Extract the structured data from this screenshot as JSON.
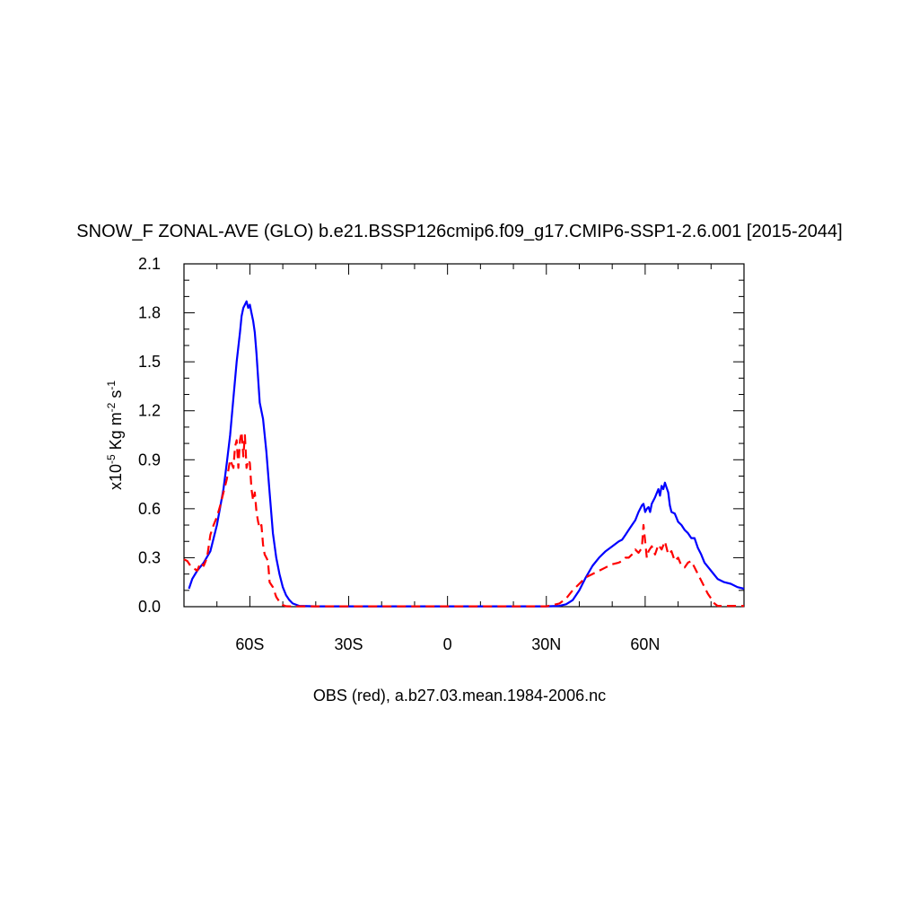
{
  "chart_data": {
    "type": "line",
    "title": "SNOW_F ZONAL-AVE (GLO) b.e21.BSSP126cmip6.f09_g17.CMIP6-SSP1-2.6.001 [2015-2044]",
    "footer": "OBS (red), a.b27.03.mean.1984-2006.nc",
    "ylabel_prefix": "x10",
    "ylabel_exp": "-5",
    "ylabel_units": " Kg m",
    "ylabel_m_exp": "-2",
    "ylabel_s": " s",
    "ylabel_s_exp": "-1",
    "xlim": [
      -80,
      90
    ],
    "ylim": [
      0,
      2.1
    ],
    "xticks": [
      {
        "value": -60,
        "label": "60S"
      },
      {
        "value": -30,
        "label": "30S"
      },
      {
        "value": 0,
        "label": "0"
      },
      {
        "value": 30,
        "label": "30N"
      },
      {
        "value": 60,
        "label": "60N"
      }
    ],
    "yticks": [
      {
        "value": 0.0,
        "label": "0.0"
      },
      {
        "value": 0.3,
        "label": "0.3"
      },
      {
        "value": 0.6,
        "label": "0.6"
      },
      {
        "value": 0.9,
        "label": "0.9"
      },
      {
        "value": 1.2,
        "label": "1.2"
      },
      {
        "value": 1.5,
        "label": "1.5"
      },
      {
        "value": 1.8,
        "label": "1.8"
      },
      {
        "value": 2.1,
        "label": "2.1"
      }
    ],
    "grid": false,
    "series": [
      {
        "color": "#0000ff",
        "dash": "none",
        "x": [
          -78.5,
          -77.5,
          -76,
          -74,
          -72,
          -70,
          -68,
          -67,
          -66,
          -65,
          -64,
          -63,
          -62.5,
          -62,
          -61.5,
          -61,
          -60.5,
          -60,
          -59.5,
          -59,
          -58.5,
          -58,
          -57.5,
          -57,
          -56,
          -55,
          -54,
          -53,
          -52,
          -51,
          -50,
          -49,
          -48,
          -47,
          -45,
          -40,
          -30,
          -20,
          -10,
          0,
          10,
          20,
          30,
          34,
          36,
          38,
          40,
          42,
          44,
          46,
          48,
          50,
          52,
          53,
          54,
          55,
          56,
          57,
          58,
          59,
          59.5,
          60,
          60.5,
          61,
          61.5,
          62,
          63,
          64,
          64.5,
          65,
          65.5,
          66,
          66.5,
          67,
          67.5,
          68,
          69,
          70,
          71,
          72,
          73,
          74,
          75,
          76,
          77,
          78,
          80,
          82,
          84,
          86,
          88,
          90
        ],
        "y": [
          0.11,
          0.17,
          0.22,
          0.27,
          0.34,
          0.5,
          0.72,
          0.88,
          1.05,
          1.28,
          1.5,
          1.68,
          1.78,
          1.83,
          1.85,
          1.87,
          1.83,
          1.85,
          1.8,
          1.75,
          1.68,
          1.55,
          1.4,
          1.25,
          1.15,
          0.95,
          0.7,
          0.45,
          0.3,
          0.2,
          0.12,
          0.07,
          0.04,
          0.02,
          0.005,
          0.002,
          0.002,
          0.002,
          0.002,
          0.002,
          0.002,
          0.002,
          0.002,
          0.005,
          0.015,
          0.04,
          0.1,
          0.18,
          0.25,
          0.3,
          0.34,
          0.37,
          0.4,
          0.41,
          0.44,
          0.47,
          0.5,
          0.53,
          0.58,
          0.62,
          0.63,
          0.58,
          0.6,
          0.61,
          0.58,
          0.63,
          0.67,
          0.72,
          0.68,
          0.74,
          0.72,
          0.76,
          0.73,
          0.7,
          0.62,
          0.58,
          0.57,
          0.52,
          0.5,
          0.47,
          0.45,
          0.42,
          0.42,
          0.36,
          0.32,
          0.27,
          0.22,
          0.17,
          0.15,
          0.14,
          0.12,
          0.11
        ]
      },
      {
        "color": "#ff0000",
        "dash": "10,6",
        "x": [
          -80,
          -79,
          -78,
          -76,
          -75,
          -74,
          -73,
          -72,
          -71,
          -70,
          -69,
          -68,
          -67,
          -66,
          -65,
          -64.5,
          -64,
          -63.5,
          -63,
          -62.5,
          -62,
          -61.5,
          -61,
          -60.5,
          -60,
          -59.5,
          -59,
          -58.5,
          -58,
          -57.5,
          -57,
          -56.5,
          -56,
          -55.5,
          -55,
          -54.5,
          -54,
          -53,
          -52,
          -51,
          -50,
          -49,
          -48,
          -46,
          -44,
          -40,
          -30,
          -20,
          -10,
          0,
          10,
          20,
          30,
          32,
          34,
          36,
          38,
          40,
          42,
          44,
          46,
          48,
          50,
          52,
          53,
          54,
          55,
          56,
          57,
          58,
          59,
          59.5,
          60,
          60.5,
          61,
          62,
          63,
          64,
          65,
          66,
          67,
          68,
          69,
          70,
          71,
          72,
          73,
          74,
          75,
          76,
          77,
          78,
          79,
          80,
          81,
          82,
          83,
          84,
          86,
          88,
          90
        ],
        "y": [
          0.29,
          0.28,
          0.25,
          0.22,
          0.27,
          0.25,
          0.3,
          0.44,
          0.5,
          0.55,
          0.62,
          0.7,
          0.78,
          0.9,
          0.85,
          0.98,
          1.02,
          0.85,
          1.02,
          1.07,
          0.92,
          1.05,
          0.85,
          0.9,
          0.88,
          0.72,
          0.65,
          0.7,
          0.58,
          0.52,
          0.48,
          0.5,
          0.38,
          0.32,
          0.3,
          0.28,
          0.15,
          0.12,
          0.06,
          0.03,
          0.01,
          0.003,
          0.002,
          0.002,
          0.002,
          0.002,
          0.002,
          0.002,
          0.002,
          0.002,
          0.002,
          0.002,
          0.002,
          0.01,
          0.02,
          0.05,
          0.1,
          0.14,
          0.18,
          0.2,
          0.22,
          0.24,
          0.26,
          0.27,
          0.28,
          0.3,
          0.3,
          0.32,
          0.35,
          0.33,
          0.36,
          0.5,
          0.4,
          0.3,
          0.34,
          0.37,
          0.32,
          0.38,
          0.35,
          0.4,
          0.32,
          0.34,
          0.28,
          0.3,
          0.25,
          0.24,
          0.27,
          0.28,
          0.24,
          0.2,
          0.16,
          0.12,
          0.08,
          0.05,
          0.02,
          0.005,
          0.005,
          0.005,
          0.005,
          0.005,
          0.005
        ]
      }
    ]
  }
}
